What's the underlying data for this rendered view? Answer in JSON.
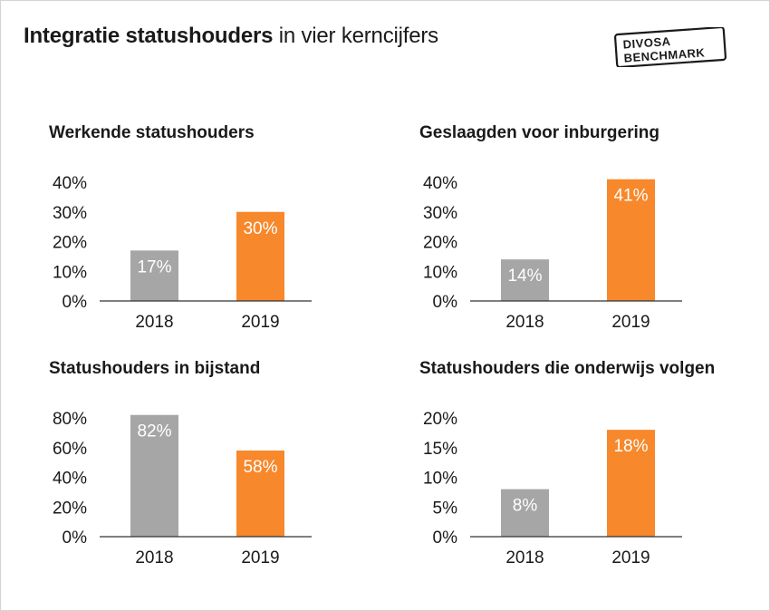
{
  "header": {
    "title_bold": "Integratie statushouders",
    "title_rest": " in vier kerncijfers"
  },
  "logo": {
    "line1": "DIVOSA",
    "line2": "BENCHMARK"
  },
  "colors": {
    "year_2018": "#a6a6a6",
    "year_2019": "#f7882b",
    "text": "#1a1a1a",
    "label": "#ffffff"
  },
  "chart_data": [
    {
      "type": "bar",
      "title": "Werkende statushouders",
      "categories": [
        "2018",
        "2019"
      ],
      "values": [
        17,
        30
      ],
      "data_labels": [
        "17%",
        "30%"
      ],
      "ylim": [
        0,
        40
      ],
      "yticks": [
        0,
        10,
        20,
        30,
        40
      ],
      "ytick_labels": [
        "0%",
        "10%",
        "20%",
        "30%",
        "40%"
      ]
    },
    {
      "type": "bar",
      "title": "Geslaagden voor inburgering",
      "categories": [
        "2018",
        "2019"
      ],
      "values": [
        14,
        41
      ],
      "data_labels": [
        "14%",
        "41%"
      ],
      "ylim": [
        0,
        40
      ],
      "yticks": [
        0,
        10,
        20,
        30,
        40
      ],
      "ytick_labels": [
        "0%",
        "10%",
        "20%",
        "30%",
        "40%"
      ]
    },
    {
      "type": "bar",
      "title": "Statushouders in bijstand",
      "categories": [
        "2018",
        "2019"
      ],
      "values": [
        82,
        58
      ],
      "data_labels": [
        "82%",
        "58%"
      ],
      "ylim": [
        0,
        80
      ],
      "yticks": [
        0,
        20,
        40,
        60,
        80
      ],
      "ytick_labels": [
        "0%",
        "20%",
        "40%",
        "60%",
        "80%"
      ]
    },
    {
      "type": "bar",
      "title": "Statushouders die onderwijs volgen",
      "categories": [
        "2018",
        "2019"
      ],
      "values": [
        8,
        18
      ],
      "data_labels": [
        "8%",
        "18%"
      ],
      "ylim": [
        0,
        20
      ],
      "yticks": [
        0,
        5,
        10,
        15,
        20
      ],
      "ytick_labels": [
        "0%",
        "5%",
        "10%",
        "15%",
        "20%"
      ]
    }
  ]
}
